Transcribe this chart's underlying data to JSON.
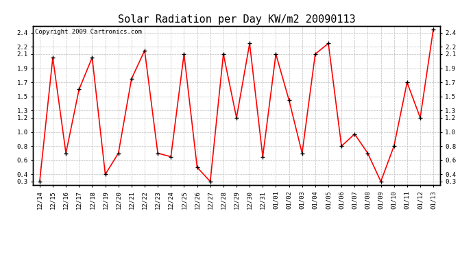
{
  "title": "Solar Radiation per Day KW/m2 20090113",
  "copyright": "Copyright 2009 Cartronics.com",
  "x_labels": [
    "12/14",
    "12/15",
    "12/16",
    "12/17",
    "12/18",
    "12/19",
    "12/20",
    "12/21",
    "12/22",
    "12/23",
    "12/24",
    "12/25",
    "12/26",
    "12/27",
    "12/28",
    "12/29",
    "12/30",
    "12/31",
    "01/01",
    "01/02",
    "01/03",
    "01/04",
    "01/05",
    "01/06",
    "01/07",
    "01/08",
    "01/09",
    "01/10",
    "01/11",
    "01/12",
    "01/13"
  ],
  "y_values": [
    0.3,
    2.05,
    0.7,
    1.6,
    2.05,
    0.4,
    0.7,
    1.75,
    2.15,
    0.7,
    0.65,
    2.1,
    0.5,
    0.3,
    2.1,
    1.2,
    2.25,
    0.65,
    2.1,
    1.45,
    0.7,
    2.1,
    2.25,
    0.8,
    0.97,
    0.7,
    0.3,
    0.8,
    1.7,
    1.2,
    2.45
  ],
  "line_color": "#ff0000",
  "marker_color": "#000000",
  "bg_color": "#ffffff",
  "grid_color": "#bbbbbb",
  "yticks": [
    0.3,
    0.4,
    0.6,
    0.8,
    1.0,
    1.2,
    1.3,
    1.5,
    1.7,
    1.9,
    2.1,
    2.2,
    2.4
  ],
  "ylim": [
    0.25,
    2.5
  ],
  "title_fontsize": 11,
  "copyright_fontsize": 6.5,
  "tick_fontsize": 6.5,
  "figwidth": 6.9,
  "figheight": 3.75,
  "dpi": 100
}
